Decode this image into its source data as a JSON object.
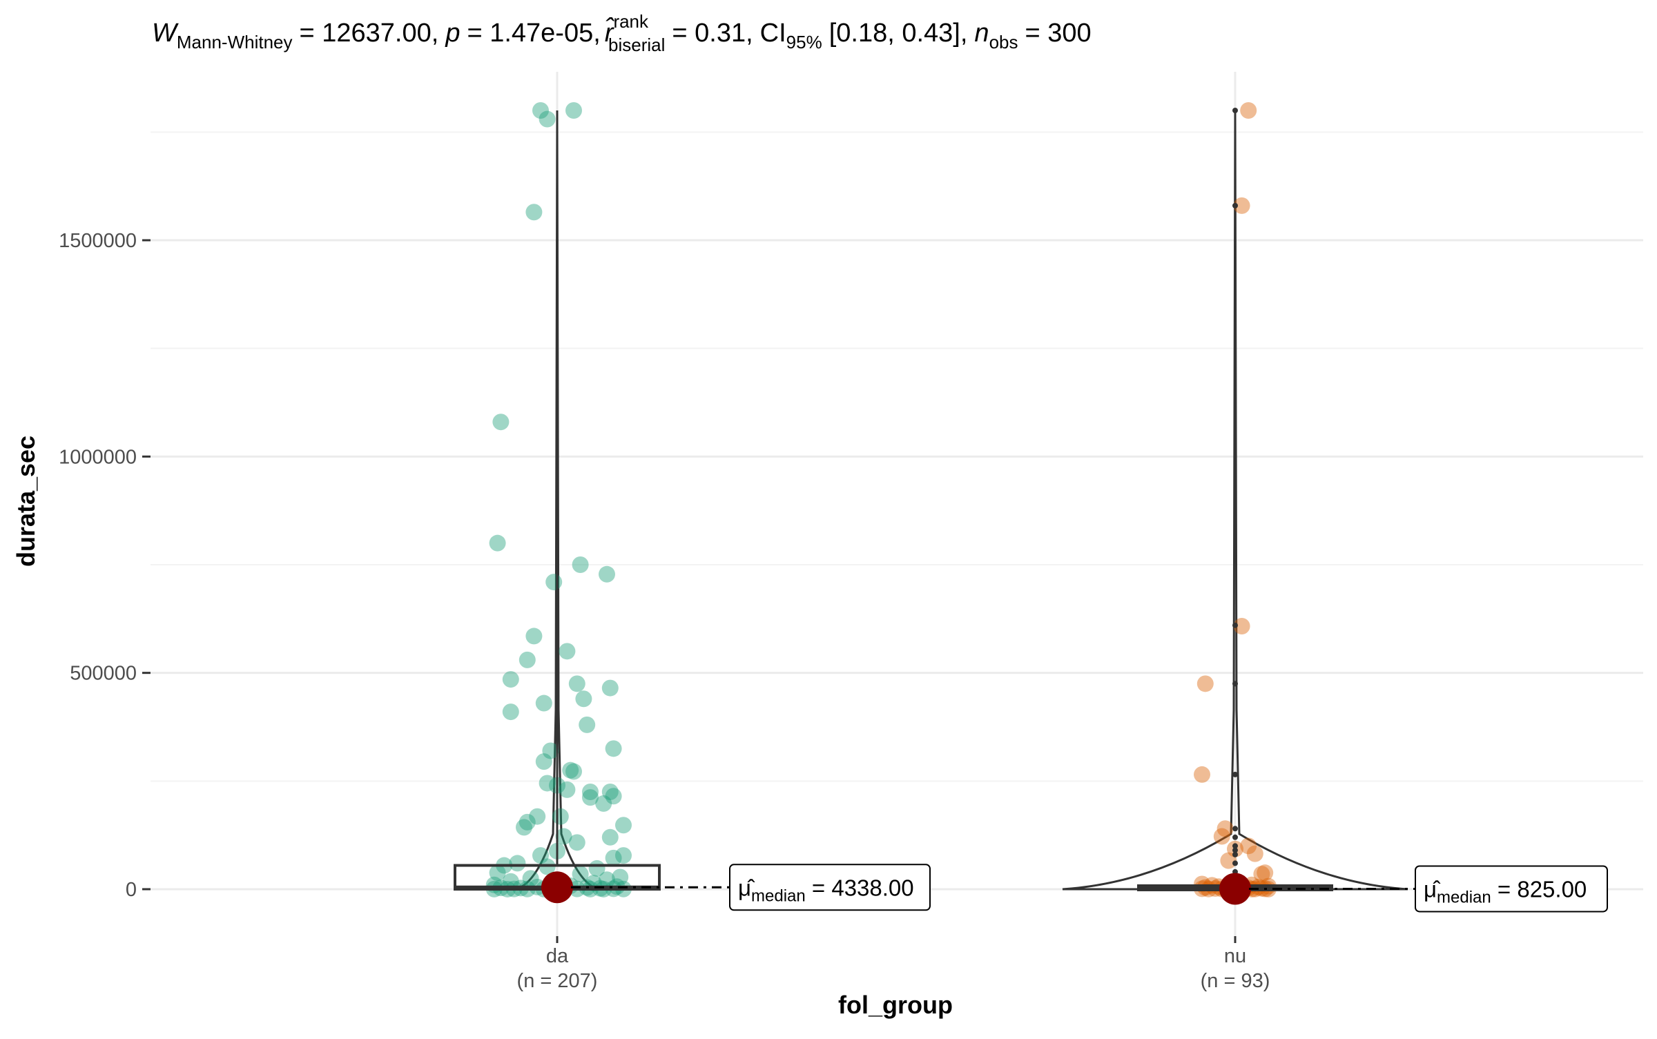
{
  "chart_data": {
    "type": "scatter",
    "subtype": "box-violin-jitter",
    "title": {
      "stat_symbol": "W",
      "stat_subscript": "Mann-Whitney",
      "stat_value": "= 12637.00,",
      "p_symbol": "p",
      "p_value": "= 1.47e-05,",
      "effect_symbol": "r̂",
      "effect_superscript": "rank",
      "effect_subscript": "biserial",
      "effect_value": "= 0.31,",
      "ci_symbol": "CI",
      "ci_subscript": "95%",
      "ci_value": "[0.18, 0.43],",
      "n_symbol": "n",
      "n_subscript": "obs",
      "n_value": "= 300"
    },
    "xlabel": "fol_group",
    "ylabel": "durata_sec",
    "ylim": [
      -55000,
      1840000
    ],
    "yticks": [
      0,
      500000,
      1000000,
      1500000
    ],
    "ytick_labels": [
      "0",
      "500000",
      "1000000",
      "1500000"
    ],
    "grid": true,
    "groups": [
      {
        "category": "da",
        "n_label": "(n = 207)",
        "color": "#1b9e77",
        "median_value": 4338,
        "median_label_main": "μ̂",
        "median_label_sub": "median",
        "median_label_value": "= 4338.00",
        "box": {
          "q1": 0,
          "median": 4338,
          "q3": 55000
        },
        "whisker_max": 1800000,
        "points": [
          [
            -0.05,
            1800000
          ],
          [
            0.05,
            1800000
          ],
          [
            -0.03,
            1780000
          ],
          [
            -0.07,
            1565000
          ],
          [
            -0.17,
            1080000
          ],
          [
            -0.18,
            800000
          ],
          [
            0.07,
            750000
          ],
          [
            0.15,
            728000
          ],
          [
            -0.01,
            710000
          ],
          [
            -0.07,
            585000
          ],
          [
            0.03,
            550000
          ],
          [
            -0.09,
            530000
          ],
          [
            -0.14,
            485000
          ],
          [
            0.06,
            475000
          ],
          [
            0.16,
            465000
          ],
          [
            0.08,
            440000
          ],
          [
            -0.04,
            430000
          ],
          [
            -0.14,
            410000
          ],
          [
            0.09,
            380000
          ],
          [
            0.17,
            325000
          ],
          [
            -0.02,
            320000
          ],
          [
            -0.04,
            295000
          ],
          [
            0.04,
            275000
          ],
          [
            0.05,
            272000
          ],
          [
            -0.03,
            245000
          ],
          [
            0.0,
            240000
          ],
          [
            0.03,
            230000
          ],
          [
            0.1,
            225000
          ],
          [
            0.16,
            225000
          ],
          [
            0.1,
            212000
          ],
          [
            0.17,
            215000
          ],
          [
            0.14,
            198000
          ],
          [
            -0.06,
            168000
          ],
          [
            0.01,
            168000
          ],
          [
            -0.09,
            155000
          ],
          [
            -0.1,
            143000
          ],
          [
            0.2,
            148000
          ],
          [
            0.02,
            122000
          ],
          [
            0.16,
            120000
          ],
          [
            0.06,
            108000
          ],
          [
            0.0,
            88000
          ],
          [
            -0.05,
            78000
          ],
          [
            0.2,
            78000
          ],
          [
            0.17,
            72000
          ],
          [
            -0.12,
            60000
          ],
          [
            -0.16,
            55000
          ],
          [
            -0.03,
            52000
          ],
          [
            0.12,
            48000
          ],
          [
            -0.18,
            38000
          ],
          [
            0.07,
            35000
          ],
          [
            0.19,
            28000
          ],
          [
            -0.08,
            25000
          ],
          [
            0.15,
            22000
          ],
          [
            -0.14,
            18000
          ],
          [
            0.11,
            14000
          ],
          [
            -0.19,
            10000
          ],
          [
            0.04,
            8000
          ],
          [
            0.18,
            6000
          ],
          [
            -0.06,
            5000
          ],
          [
            0.09,
            4000
          ],
          [
            -0.17,
            3000
          ],
          [
            -0.11,
            2500
          ],
          [
            0.13,
            2000
          ],
          [
            -0.02,
            1500
          ],
          [
            0.17,
            1000
          ],
          [
            0.0,
            800
          ],
          [
            -0.13,
            600
          ],
          [
            0.06,
            500
          ],
          [
            -0.09,
            400
          ],
          [
            0.2,
            300
          ],
          [
            -0.19,
            200
          ],
          [
            0.1,
            150
          ],
          [
            -0.04,
            100
          ],
          [
            0.14,
            80
          ],
          [
            0.02,
            60
          ],
          [
            -0.15,
            50
          ]
        ]
      },
      {
        "category": "nu",
        "n_label": "(n = 93)",
        "color": "#d95f02",
        "median_value": 825,
        "median_label_main": "μ̂",
        "median_label_sub": "median",
        "median_label_value": "= 825.00",
        "box": {
          "q1": 0,
          "median": 825,
          "q3": 8000
        },
        "whisker_max": 25000,
        "outliers": [
          1800000,
          1580000,
          610000,
          475000,
          265000,
          140000,
          120000,
          100000,
          90000,
          80000,
          60000,
          40000
        ],
        "points": [
          [
            0.04,
            1800000
          ],
          [
            0.02,
            1580000
          ],
          [
            0.02,
            608000
          ],
          [
            -0.09,
            475000
          ],
          [
            -0.1,
            265000
          ],
          [
            -0.03,
            140000
          ],
          [
            -0.04,
            122000
          ],
          [
            0.04,
            100000
          ],
          [
            0.0,
            93000
          ],
          [
            0.06,
            82000
          ],
          [
            -0.02,
            66000
          ],
          [
            0.09,
            38000
          ],
          [
            0.08,
            35000
          ],
          [
            -0.1,
            12000
          ],
          [
            0.05,
            10000
          ],
          [
            -0.07,
            9000
          ],
          [
            0.02,
            8000
          ],
          [
            0.1,
            7000
          ],
          [
            -0.05,
            6000
          ],
          [
            0.07,
            5000
          ],
          [
            -0.09,
            4000
          ],
          [
            0.0,
            3500
          ],
          [
            0.04,
            3000
          ],
          [
            -0.02,
            2500
          ],
          [
            0.08,
            2000
          ],
          [
            -0.06,
            1500
          ],
          [
            0.03,
            1200
          ],
          [
            -0.1,
            1000
          ],
          [
            0.09,
            800
          ],
          [
            -0.04,
            600
          ],
          [
            0.06,
            400
          ],
          [
            -0.08,
            300
          ],
          [
            0.01,
            200
          ],
          [
            0.1,
            150
          ],
          [
            -0.03,
            100
          ],
          [
            0.05,
            80
          ]
        ]
      }
    ],
    "median_point_color": "#8b0000"
  }
}
